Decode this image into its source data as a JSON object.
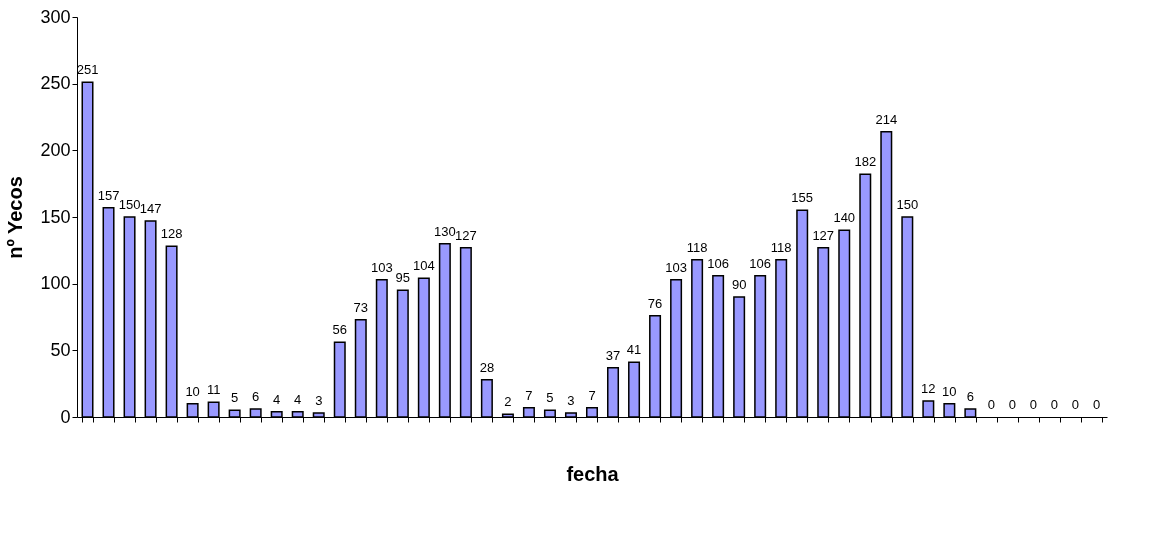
{
  "chart_data": {
    "type": "bar",
    "xlabel": "fecha",
    "ylabel": "nº Yecos",
    "categories": [
      null,
      null,
      null,
      null,
      null,
      null,
      null,
      null,
      null,
      null,
      null,
      null,
      null,
      null,
      null,
      null,
      null,
      null,
      null,
      null,
      null,
      null,
      null,
      null,
      null,
      null,
      null,
      null,
      null,
      null,
      null,
      null,
      null,
      null,
      null,
      null,
      null,
      null,
      null,
      null,
      null,
      null,
      null,
      null,
      null,
      null,
      null,
      null,
      null
    ],
    "values": [
      251,
      157,
      150,
      147,
      128,
      10,
      11,
      5,
      6,
      4,
      4,
      3,
      56,
      73,
      103,
      95,
      104,
      130,
      127,
      28,
      2,
      7,
      5,
      3,
      7,
      37,
      41,
      76,
      103,
      118,
      106,
      90,
      106,
      118,
      155,
      127,
      140,
      182,
      214,
      150,
      12,
      10,
      6,
      0,
      0,
      0,
      0,
      0,
      0
    ],
    "color": "#9999ff",
    "ylim": [
      0,
      300
    ],
    "yticks": [
      0,
      50,
      100,
      150,
      200,
      250,
      300
    ],
    "grid": false,
    "data_labels": true
  }
}
